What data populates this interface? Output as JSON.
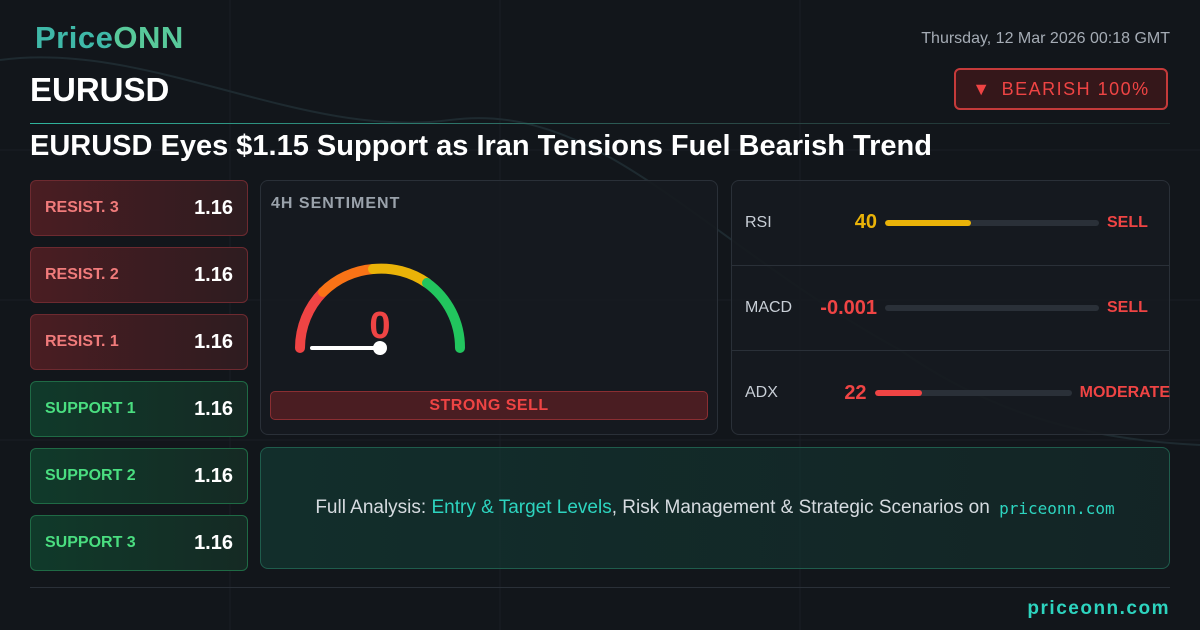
{
  "header": {
    "brand_prefix": "Price",
    "brand_suffix": "ONN",
    "datetime": "Thursday, 12 Mar 2026 00:18 GMT",
    "symbol": "EURUSD",
    "badge_icon": "▼",
    "badge": "BEARISH 100%"
  },
  "headline": "EURUSD Eyes $1.15 Support as Iran Tensions Fuel Bearish Trend",
  "levels": [
    {
      "label": "RESIST. 3",
      "value": 1.16,
      "kind": "resist"
    },
    {
      "label": "RESIST. 2",
      "value": 1.16,
      "kind": "resist"
    },
    {
      "label": "RESIST. 1",
      "value": 1.16,
      "kind": "resist"
    },
    {
      "label": "SUPPORT 1",
      "value": 1.16,
      "kind": "support"
    },
    {
      "label": "SUPPORT 2",
      "value": 1.16,
      "kind": "support"
    },
    {
      "label": "SUPPORT 3",
      "value": 1.16,
      "kind": "support"
    }
  ],
  "sentiment": {
    "title": "4H SENTIMENT",
    "value": 0,
    "label": "STRONG SELL"
  },
  "indicators": [
    {
      "name": "RSI",
      "value": 40,
      "signal": "SELL",
      "color": "#eab308"
    },
    {
      "name": "MACD",
      "value": -0.001,
      "signal": "SELL",
      "color": "#ef4444"
    },
    {
      "name": "ADX",
      "value": 22,
      "signal": "MODERATE",
      "color": "#ef4444"
    }
  ],
  "cta": {
    "prefix": "Full Analysis: ",
    "highlight": "Entry & Target Levels",
    "suffix": ", Risk Management & Strategic Scenarios on ",
    "site": "priceonn.com"
  },
  "footer": {
    "site": "priceonn.com"
  }
}
